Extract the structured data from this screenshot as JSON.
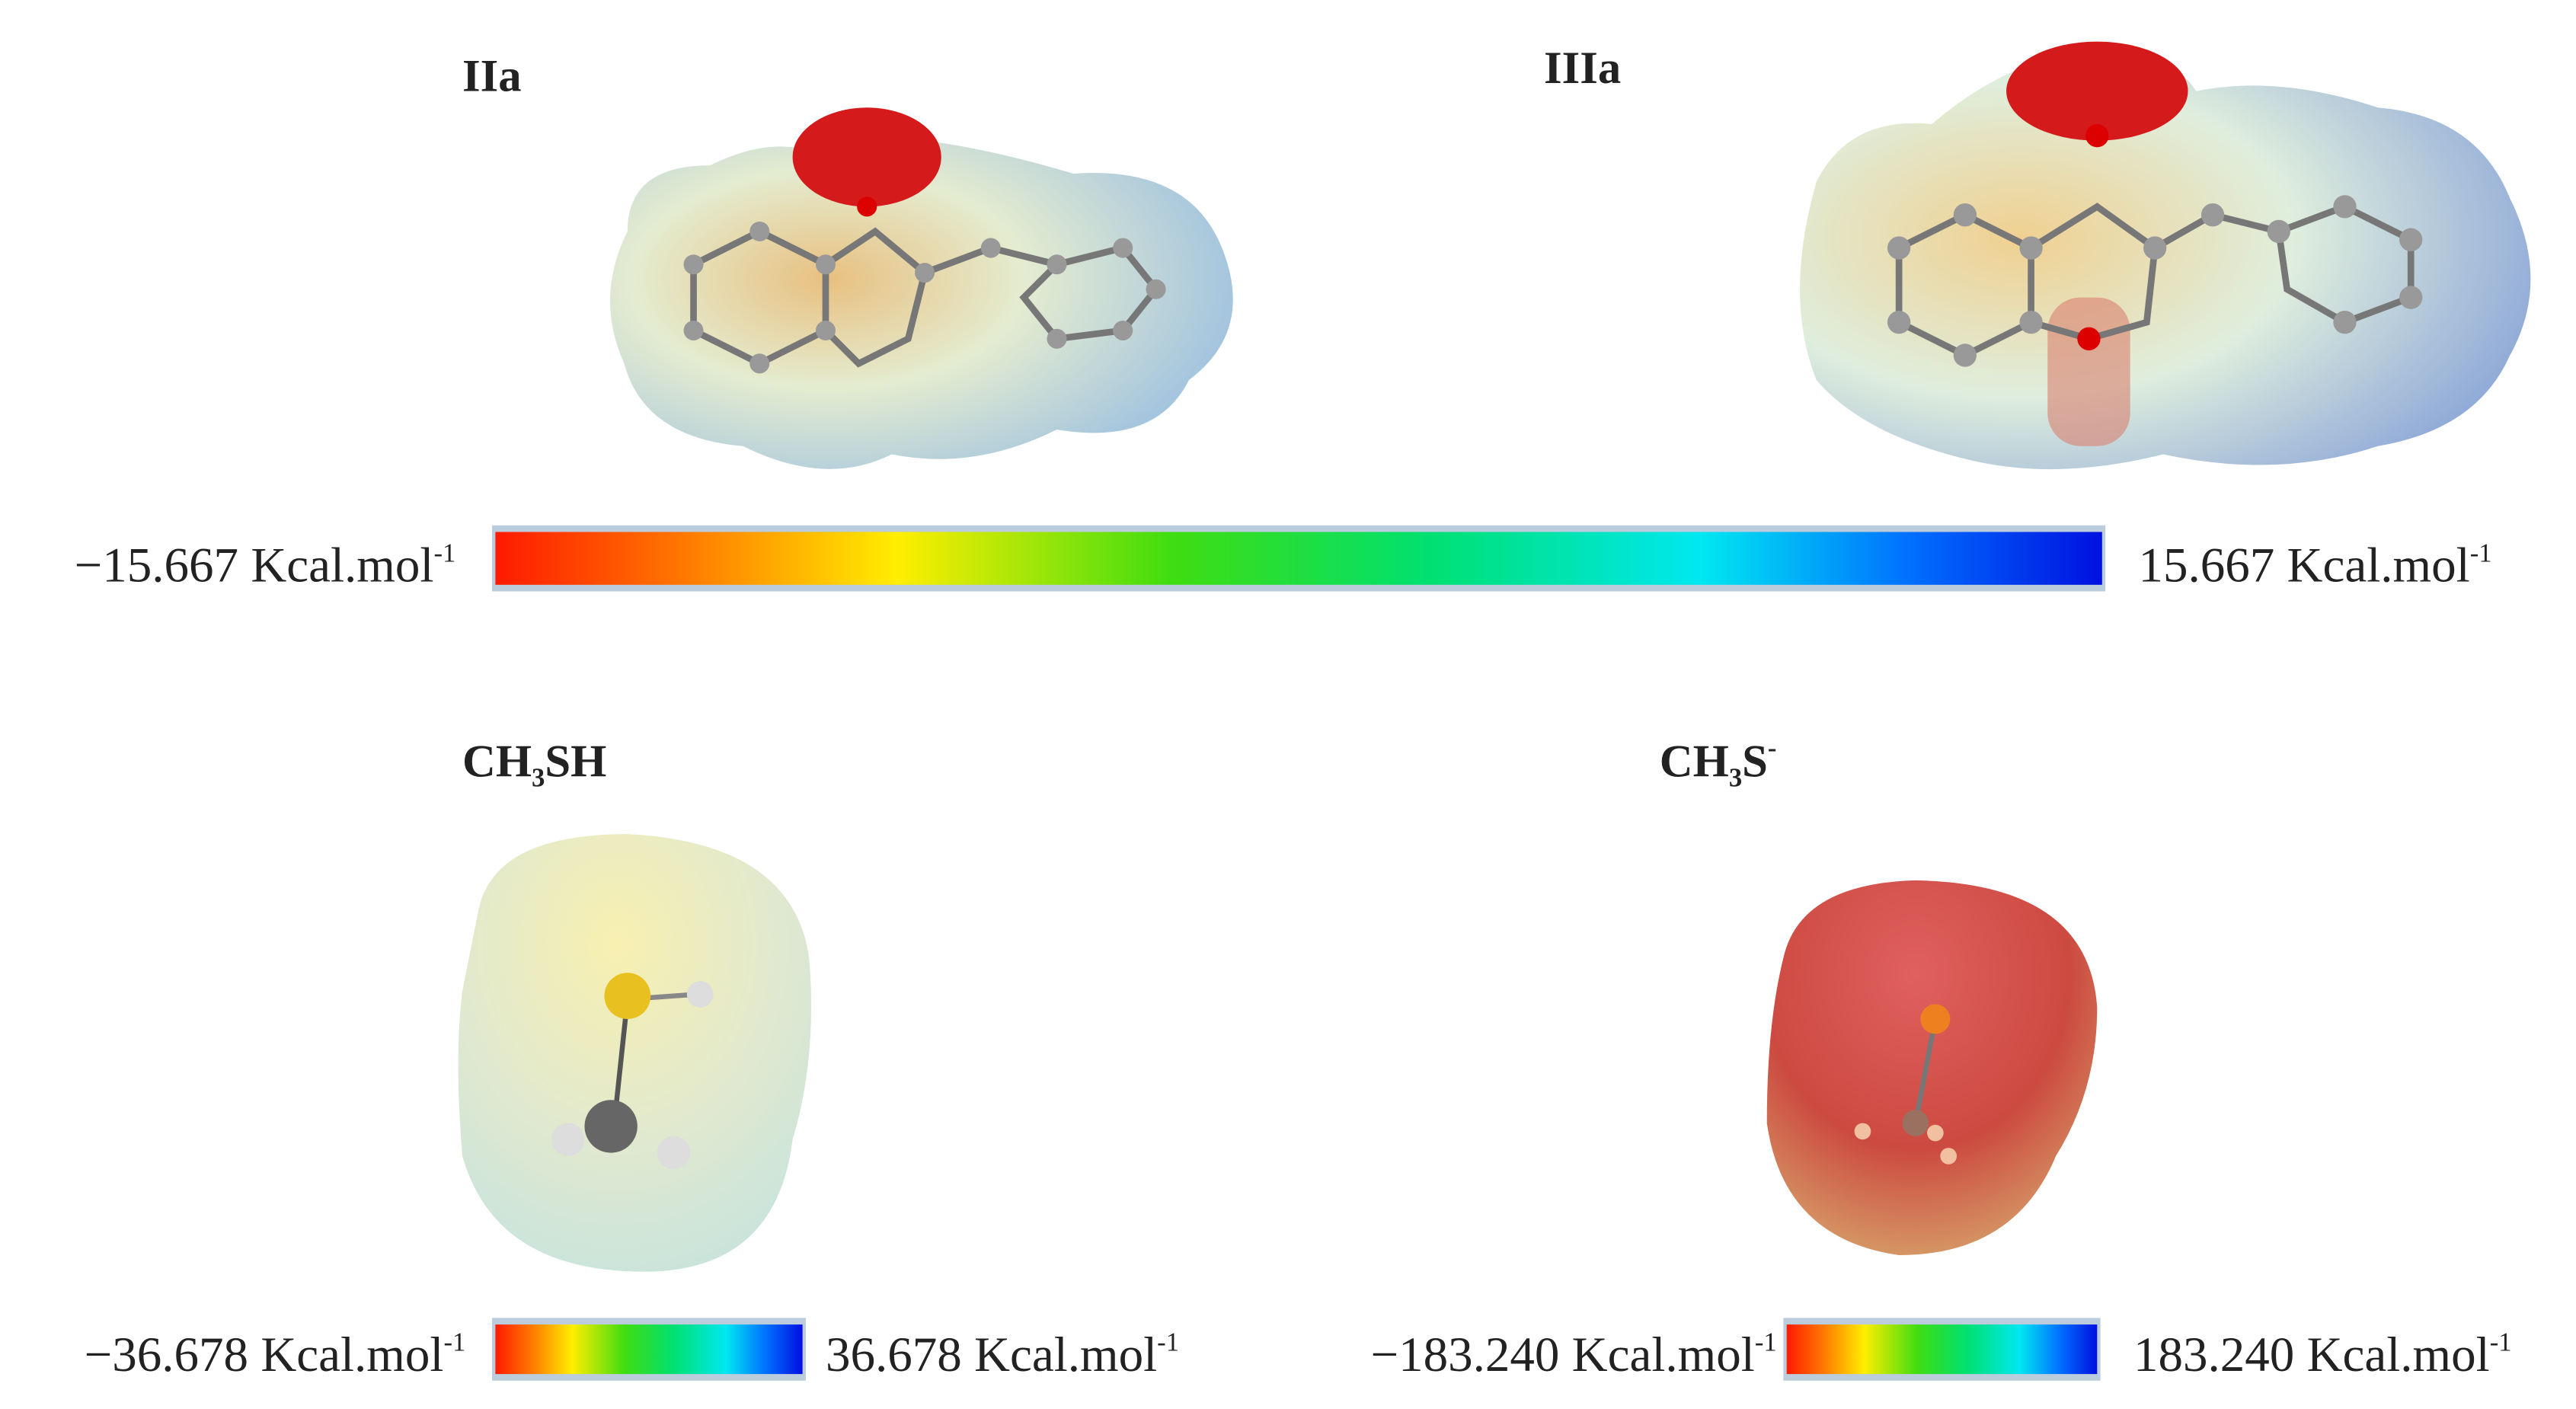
{
  "molecules": [
    {
      "label": {
        "text": "IIa"
      }
    },
    {
      "label": {
        "text": "IIIa"
      }
    },
    {
      "label": {
        "text": "CH",
        "sub": "3",
        "after": "SH"
      }
    },
    {
      "label": {
        "text": "CH",
        "sub": "3",
        "after": "S",
        "sup": "-"
      }
    }
  ],
  "scales": [
    {
      "min": "−15.667",
      "max": "15.667",
      "unit": "Kcal.mol",
      "power": "-1"
    },
    {
      "min": "−36.678",
      "max": "36.678",
      "unit": "Kcal.mol",
      "power": "-1"
    },
    {
      "min": "−183.240",
      "max": "183.240",
      "unit": "Kcal.mol",
      "power": "-1"
    }
  ]
}
